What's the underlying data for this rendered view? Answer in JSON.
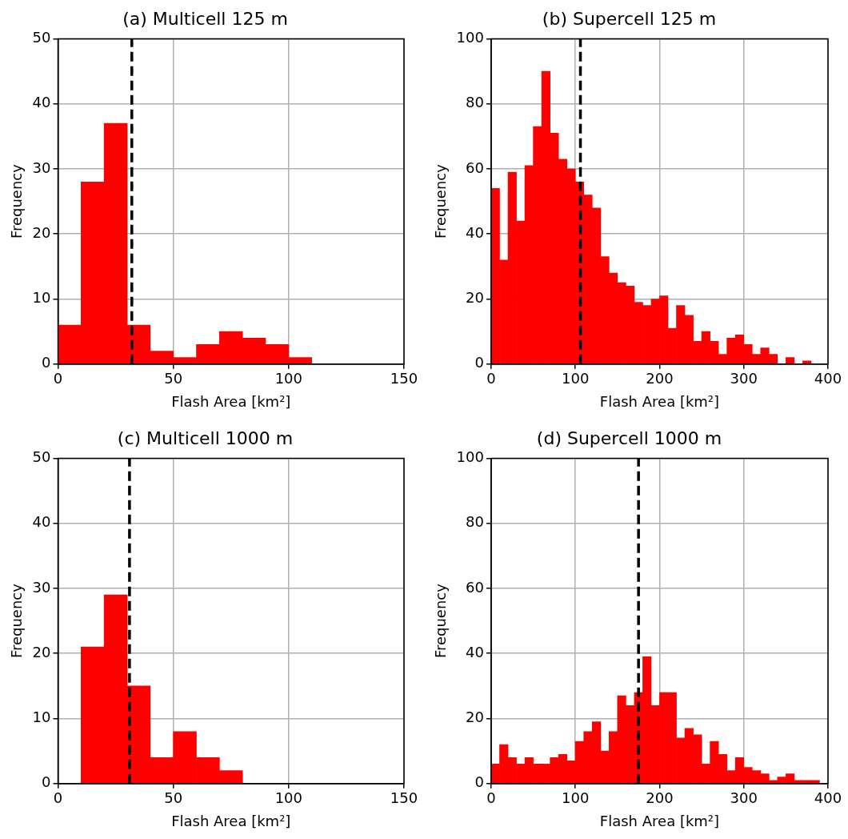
{
  "chart_data": [
    {
      "type": "histogram",
      "title": "(a) Multicell 125 m",
      "xlabel": "Flash Area [km²]",
      "ylabel": "Frequency",
      "bins": [
        0,
        10,
        20,
        30,
        40,
        50,
        60,
        70,
        80,
        90,
        100,
        110
      ],
      "values": [
        6,
        28,
        37,
        6,
        2,
        1,
        3,
        5,
        4,
        3,
        1
      ],
      "color": "#ff0000",
      "xlim": [
        0,
        150
      ],
      "xticks": [
        0,
        50,
        100,
        150
      ],
      "ylim": [
        0,
        50
      ],
      "yticks": [
        0,
        10,
        20,
        30,
        40,
        50
      ],
      "grid": true,
      "ref_lines": [
        {
          "axis": "x",
          "value": 32,
          "color": "#000000",
          "line_style": "dashed"
        }
      ]
    },
    {
      "type": "histogram",
      "title": "(b) Supercell 125 m",
      "xlabel": "Flash Area [km²]",
      "ylabel": "Frequency",
      "bins": [
        0,
        10,
        20,
        30,
        40,
        50,
        60,
        70,
        80,
        90,
        100,
        110,
        120,
        130,
        140,
        150,
        160,
        170,
        180,
        190,
        200,
        210,
        220,
        230,
        240,
        250,
        260,
        270,
        280,
        290,
        300,
        310,
        320,
        330,
        340,
        350,
        360,
        370,
        380,
        390
      ],
      "values": [
        54,
        32,
        59,
        44,
        61,
        73,
        90,
        71,
        63,
        60,
        56,
        52,
        48,
        33,
        28,
        25,
        24,
        19,
        18,
        20,
        21,
        11,
        18,
        15,
        7,
        10,
        7,
        3,
        8,
        9,
        6,
        3,
        5,
        3,
        0,
        2,
        0,
        1,
        0
      ],
      "color": "#ff0000",
      "xlim": [
        0,
        400
      ],
      "xticks": [
        0,
        100,
        200,
        300,
        400
      ],
      "ylim": [
        0,
        100
      ],
      "yticks": [
        0,
        20,
        40,
        60,
        80,
        100
      ],
      "grid": true,
      "ref_lines": [
        {
          "axis": "x",
          "value": 106,
          "color": "#000000",
          "line_style": "dashed"
        }
      ]
    },
    {
      "type": "histogram",
      "title": "(c) Multicell 1000 m",
      "xlabel": "Flash Area [km²]",
      "ylabel": "Frequency",
      "bins": [
        10,
        20,
        30,
        40,
        50,
        60,
        70,
        80
      ],
      "values": [
        21,
        29,
        15,
        4,
        8,
        4,
        2
      ],
      "color": "#ff0000",
      "xlim": [
        0,
        150
      ],
      "xticks": [
        0,
        50,
        100,
        150
      ],
      "ylim": [
        0,
        50
      ],
      "yticks": [
        0,
        10,
        20,
        30,
        40,
        50
      ],
      "grid": true,
      "ref_lines": [
        {
          "axis": "x",
          "value": 31,
          "color": "#000000",
          "line_style": "dashed"
        }
      ]
    },
    {
      "type": "histogram",
      "title": "(d) Supercell 1000 m",
      "xlabel": "Flash Area [km²]",
      "ylabel": "Frequency",
      "bins": [
        0,
        10,
        20,
        30,
        40,
        50,
        60,
        70,
        80,
        90,
        100,
        110,
        120,
        130,
        140,
        150,
        160,
        170,
        180,
        190,
        200,
        210,
        220,
        230,
        240,
        250,
        260,
        270,
        280,
        290,
        300,
        310,
        320,
        330,
        340,
        350,
        360,
        370,
        380,
        390
      ],
      "values": [
        6,
        12,
        8,
        6,
        8,
        6,
        6,
        8,
        9,
        7,
        13,
        16,
        19,
        10,
        16,
        27,
        24,
        28,
        39,
        24,
        28,
        28,
        14,
        17,
        15,
        6,
        13,
        9,
        4,
        8,
        5,
        4,
        3,
        1,
        2,
        3,
        1,
        1,
        1
      ],
      "color": "#ff0000",
      "xlim": [
        0,
        400
      ],
      "xticks": [
        0,
        100,
        200,
        300,
        400
      ],
      "ylim": [
        0,
        100
      ],
      "yticks": [
        0,
        20,
        40,
        60,
        80,
        100
      ],
      "grid": true,
      "ref_lines": [
        {
          "axis": "x",
          "value": 175,
          "color": "#000000",
          "line_style": "dashed"
        }
      ]
    }
  ]
}
